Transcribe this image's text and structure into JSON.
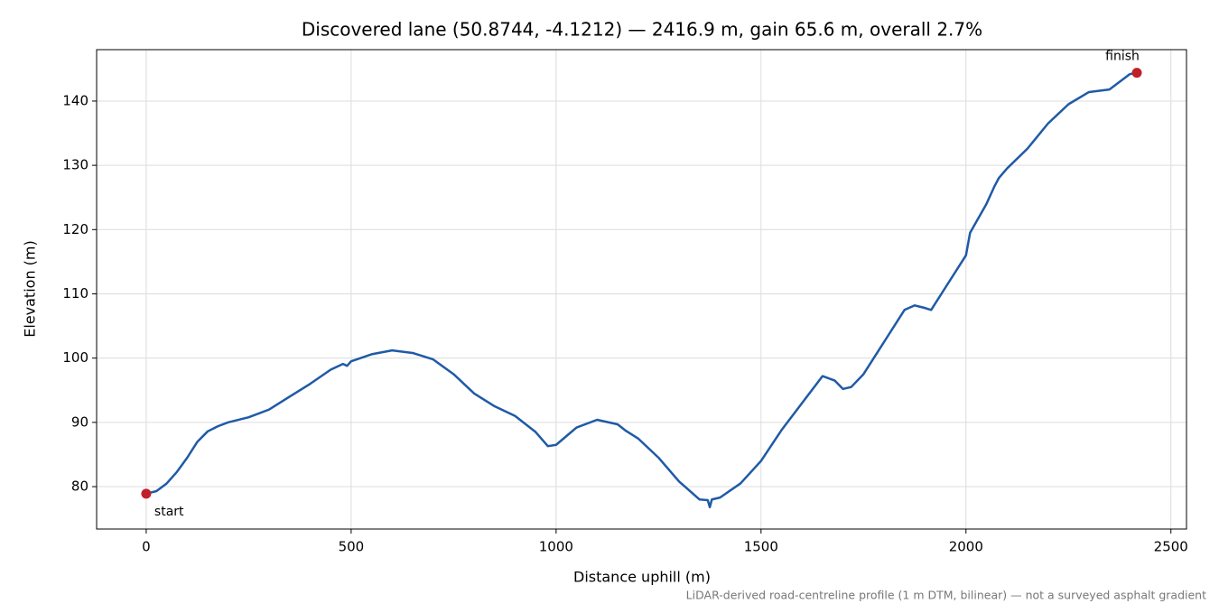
{
  "chart_data": {
    "type": "line",
    "title": "Discovered lane (50.8744, -4.1212) — 2416.9 m, gain 65.6 m, overall 2.7%",
    "x_label": "Distance uphill (m)",
    "y_label": "Elevation (m)",
    "footnote": "LiDAR-derived road-centreline profile (1 m DTM, bilinear) — not a surveyed asphalt gradient",
    "xlim": [
      -121,
      2538
    ],
    "ylim": [
      73.4,
      148.0
    ],
    "xticks": [
      0,
      500,
      1000,
      1500,
      2000,
      2500
    ],
    "yticks": [
      80,
      90,
      100,
      110,
      120,
      130,
      140
    ],
    "grid": true,
    "x": [
      0,
      25,
      50,
      75,
      100,
      125,
      150,
      175,
      200,
      250,
      300,
      350,
      400,
      450,
      480,
      490,
      500,
      550,
      600,
      650,
      700,
      750,
      800,
      850,
      900,
      950,
      980,
      1000,
      1050,
      1100,
      1150,
      1170,
      1200,
      1250,
      1300,
      1350,
      1370,
      1375,
      1380,
      1400,
      1450,
      1500,
      1550,
      1600,
      1650,
      1680,
      1700,
      1720,
      1750,
      1800,
      1850,
      1875,
      1900,
      1915,
      1950,
      2000,
      2010,
      2050,
      2070,
      2080,
      2100,
      2150,
      2200,
      2250,
      2300,
      2350,
      2400,
      2416.9
    ],
    "series": [
      {
        "color": "#1f5aa6",
        "values": [
          78.9,
          79.3,
          80.5,
          82.3,
          84.5,
          87,
          88.6,
          89.4,
          90,
          90.8,
          92,
          94,
          96,
          98.2,
          99.1,
          98.8,
          99.5,
          100.6,
          101.2,
          100.8,
          99.8,
          97.5,
          94.5,
          92.5,
          91,
          88.5,
          86.3,
          86.5,
          89.2,
          90.4,
          89.7,
          88.7,
          87.5,
          84.5,
          80.8,
          78,
          77.9,
          76.8,
          78,
          78.3,
          80.5,
          84,
          88.8,
          93,
          97.2,
          96.5,
          95.2,
          95.5,
          97.5,
          102.5,
          107.5,
          108.2,
          107.8,
          107.5,
          111,
          116,
          119.5,
          124,
          126.8,
          128,
          129.5,
          132.6,
          136.5,
          139.5,
          141.4,
          141.8,
          144.2,
          144.4
        ]
      }
    ],
    "markers": {
      "color": "#c0202a",
      "x": [
        0,
        2416.9
      ],
      "values": [
        78.9,
        144.4
      ],
      "labels": [
        "start",
        "finish"
      ]
    }
  }
}
